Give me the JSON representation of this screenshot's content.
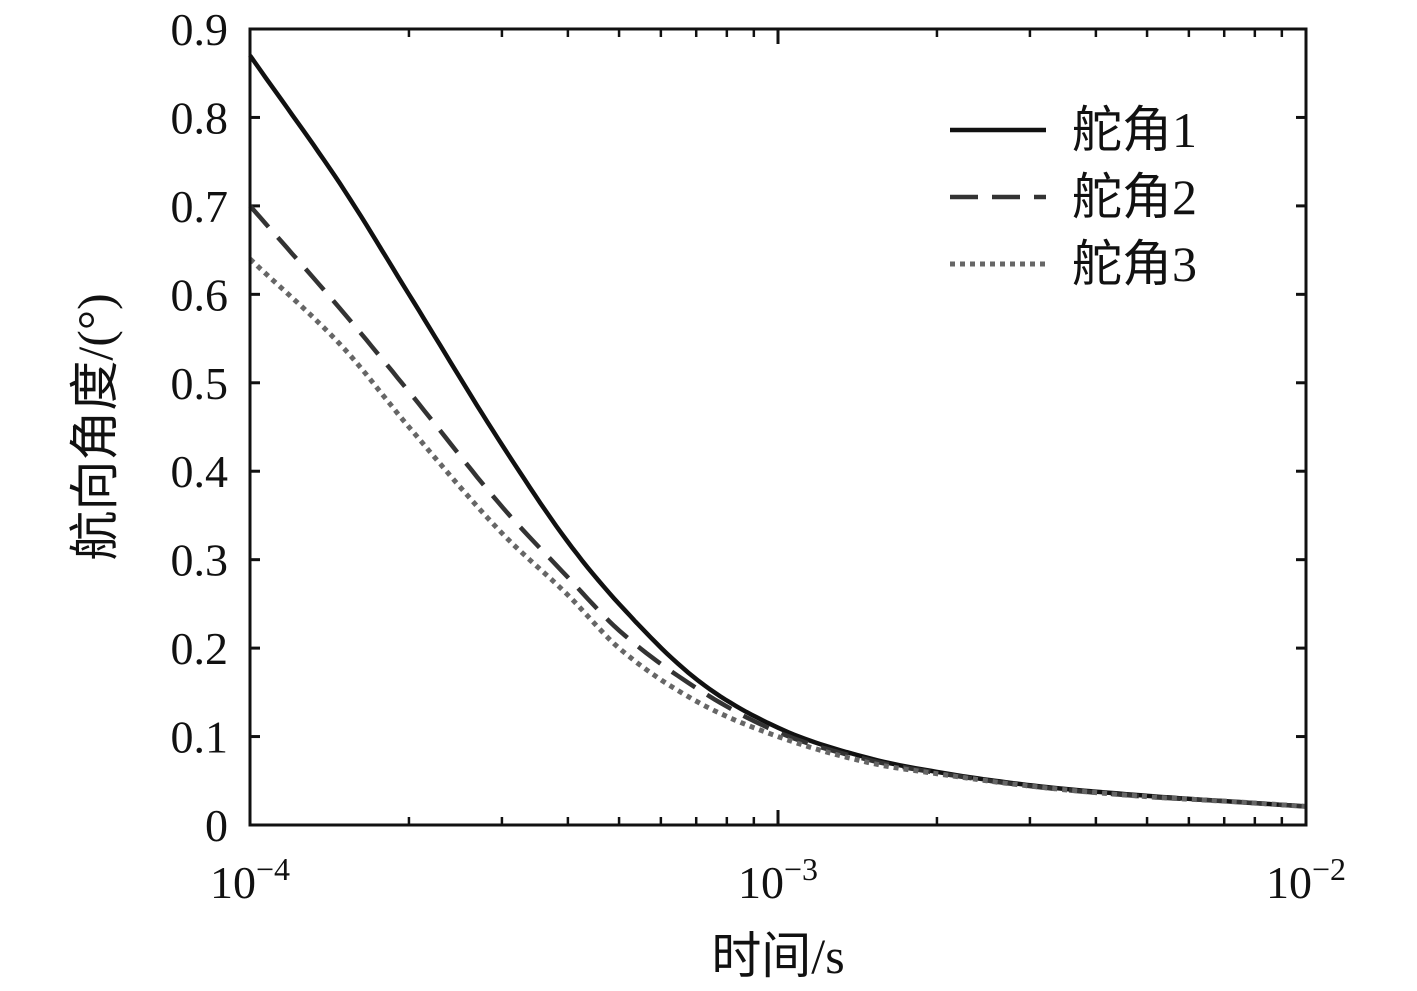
{
  "chart_data": {
    "type": "line",
    "title": "",
    "xlabel": "时间/s",
    "ylabel": "航向角度/(°)",
    "xscale": "log",
    "xlim": [
      0.0001,
      0.01
    ],
    "ylim": [
      0,
      0.9
    ],
    "xticks": [
      {
        "base": "10",
        "exp": "−4",
        "value": 0.0001
      },
      {
        "base": "10",
        "exp": "−3",
        "value": 0.001
      },
      {
        "base": "10",
        "exp": "−2",
        "value": 0.01
      }
    ],
    "yticks": [
      "0",
      "0.1",
      "0.2",
      "0.3",
      "0.4",
      "0.5",
      "0.6",
      "0.7",
      "0.8",
      "0.9"
    ],
    "grid": false,
    "legend_position": "top-right",
    "x": [
      0.0001,
      0.00015,
      0.0002,
      0.0003,
      0.0004,
      0.0005,
      0.0007,
      0.001,
      0.0015,
      0.002,
      0.003,
      0.005,
      0.007,
      0.01
    ],
    "series": [
      {
        "name": "舵角1",
        "style": "solid",
        "color": "#111111",
        "values": [
          0.87,
          0.72,
          0.6,
          0.43,
          0.32,
          0.25,
          0.165,
          0.11,
          0.075,
          0.06,
          0.045,
          0.033,
          0.027,
          0.021
        ]
      },
      {
        "name": "舵角2",
        "style": "dashed",
        "color": "#333333",
        "values": [
          0.7,
          0.58,
          0.49,
          0.36,
          0.28,
          0.22,
          0.155,
          0.105,
          0.073,
          0.059,
          0.044,
          0.032,
          0.027,
          0.021
        ]
      },
      {
        "name": "舵角3",
        "style": "dotted",
        "color": "#666666",
        "values": [
          0.64,
          0.54,
          0.45,
          0.33,
          0.26,
          0.2,
          0.14,
          0.1,
          0.07,
          0.058,
          0.044,
          0.032,
          0.027,
          0.021
        ]
      }
    ]
  }
}
